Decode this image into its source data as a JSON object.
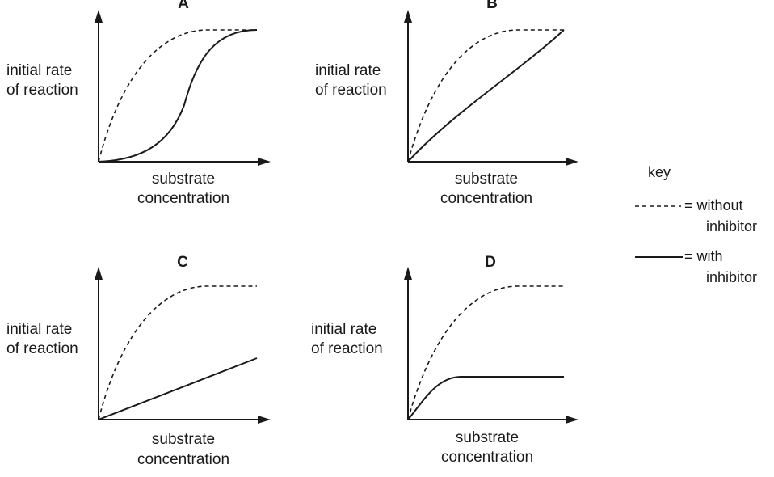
{
  "panels": [
    {
      "letter": "A",
      "y_label": [
        "initial rate",
        "of reaction"
      ],
      "x_label": [
        "substrate",
        "concentration"
      ],
      "curves": {
        "without_inhibitor": "hyperbolic",
        "with_inhibitor": "sigmoid"
      }
    },
    {
      "letter": "B",
      "y_label": [
        "initial rate",
        "of reaction"
      ],
      "x_label": [
        "substrate",
        "concentration"
      ],
      "curves": {
        "without_inhibitor": "hyperbolic",
        "with_inhibitor": "slower-rising curve reaching same maximum"
      }
    },
    {
      "letter": "C",
      "y_label": [
        "initial rate",
        "of reaction"
      ],
      "x_label": [
        "substrate",
        "concentration"
      ],
      "curves": {
        "without_inhibitor": "hyperbolic",
        "with_inhibitor": "straight line"
      }
    },
    {
      "letter": "D",
      "y_label": [
        "initial rate",
        "of reaction"
      ],
      "x_label": [
        "substrate",
        "concentration"
      ],
      "curves": {
        "without_inhibitor": "hyperbolic",
        "with_inhibitor": "lower plateau"
      }
    }
  ],
  "key": {
    "title": "key",
    "without_symbol": "------",
    "without_text": [
      "= without",
      "inhibitor"
    ],
    "with_text": [
      "= with",
      "inhibitor"
    ]
  }
}
